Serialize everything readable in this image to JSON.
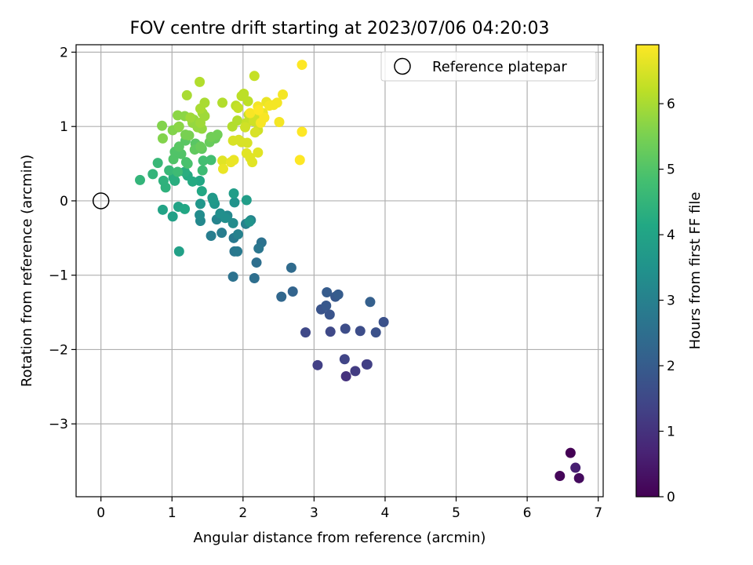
{
  "chart_data": {
    "type": "scatter",
    "title": "FOV centre drift starting at 2023/07/06 04:20:03",
    "xlabel": "Angular distance from reference (arcmin)",
    "ylabel": "Rotation from reference (arcmin)",
    "xlim": [
      -0.35,
      7.07
    ],
    "ylim": [
      -3.98,
      2.1
    ],
    "xticks": [
      "0",
      "1",
      "2",
      "3",
      "4",
      "5",
      "6",
      "7"
    ],
    "yticks": [
      "−3",
      "−2",
      "−1",
      "0",
      "1",
      "2"
    ],
    "xtick_values": [
      0,
      1,
      2,
      3,
      4,
      5,
      6,
      7
    ],
    "ytick_values": [
      -3,
      -2,
      -1,
      0,
      1,
      2
    ],
    "grid": true,
    "colormap": "viridis",
    "reference": {
      "label": "Reference platepar",
      "x": 0,
      "y": 0
    },
    "legend_position": "top-right",
    "colorbar": {
      "label": "Hours from first FF file",
      "range": [
        0,
        6.9
      ],
      "ticks": [
        "0",
        "1",
        "2",
        "3",
        "4",
        "5",
        "6"
      ],
      "tick_values": [
        0,
        1,
        2,
        3,
        4,
        5,
        6
      ]
    },
    "points": [
      [
        6.61,
        -3.39,
        0.0
      ],
      [
        6.46,
        -3.7,
        0.1
      ],
      [
        6.73,
        -3.73,
        0.2
      ],
      [
        6.68,
        -3.59,
        0.6
      ],
      [
        3.45,
        -2.36,
        1.0
      ],
      [
        3.74,
        -2.2,
        1.1
      ],
      [
        3.58,
        -2.29,
        1.2
      ],
      [
        3.75,
        -2.2,
        1.3
      ],
      [
        3.05,
        -2.21,
        1.3
      ],
      [
        3.43,
        -2.13,
        1.4
      ],
      [
        2.88,
        -1.77,
        1.5
      ],
      [
        3.23,
        -1.76,
        1.5
      ],
      [
        3.44,
        -1.72,
        1.6
      ],
      [
        3.65,
        -1.75,
        1.6
      ],
      [
        3.87,
        -1.77,
        1.7
      ],
      [
        3.98,
        -1.63,
        1.7
      ],
      [
        3.1,
        -1.46,
        1.8
      ],
      [
        3.22,
        -1.53,
        1.8
      ],
      [
        3.17,
        -1.41,
        1.9
      ],
      [
        3.3,
        -1.29,
        1.9
      ],
      [
        3.34,
        -1.26,
        2.0
      ],
      [
        3.18,
        -1.23,
        2.0
      ],
      [
        3.79,
        -1.36,
        2.1
      ],
      [
        2.7,
        -1.22,
        2.2
      ],
      [
        2.54,
        -1.29,
        2.3
      ],
      [
        2.68,
        -0.9,
        2.4
      ],
      [
        2.16,
        -1.04,
        2.5
      ],
      [
        2.19,
        -0.83,
        2.5
      ],
      [
        1.86,
        -1.02,
        2.6
      ],
      [
        2.26,
        -0.56,
        2.6
      ],
      [
        2.22,
        -0.64,
        2.7
      ],
      [
        1.88,
        -0.68,
        2.7
      ],
      [
        1.92,
        -0.68,
        2.8
      ],
      [
        1.87,
        -0.5,
        2.8
      ],
      [
        1.55,
        -0.47,
        2.9
      ],
      [
        1.7,
        -0.43,
        2.9
      ],
      [
        1.93,
        -0.45,
        3.0
      ],
      [
        2.04,
        -0.31,
        3.0
      ],
      [
        2.11,
        -0.26,
        3.1
      ],
      [
        1.63,
        -0.25,
        3.1
      ],
      [
        1.78,
        -0.2,
        3.2
      ],
      [
        1.4,
        -0.27,
        3.2
      ],
      [
        1.39,
        -0.19,
        3.3
      ],
      [
        1.86,
        -0.3,
        3.3
      ],
      [
        1.75,
        -0.23,
        3.4
      ],
      [
        1.68,
        -0.17,
        3.4
      ],
      [
        2.09,
        -0.28,
        3.5
      ],
      [
        1.88,
        -0.02,
        3.5
      ],
      [
        1.6,
        -0.04,
        3.6
      ],
      [
        1.4,
        -0.04,
        3.6
      ],
      [
        1.58,
        0.01,
        3.7
      ],
      [
        1.57,
        0.04,
        3.7
      ],
      [
        1.87,
        0.1,
        3.8
      ],
      [
        2.05,
        0.01,
        3.8
      ],
      [
        1.1,
        -0.68,
        3.9
      ],
      [
        1.01,
        -0.21,
        3.9
      ],
      [
        0.87,
        -0.12,
        4.0
      ],
      [
        1.09,
        -0.08,
        4.0
      ],
      [
        1.18,
        -0.11,
        4.1
      ],
      [
        1.42,
        0.13,
        4.1
      ],
      [
        1.39,
        0.27,
        4.1
      ],
      [
        1.29,
        0.26,
        4.2
      ],
      [
        1.22,
        0.34,
        4.2
      ],
      [
        1.18,
        0.39,
        4.3
      ],
      [
        1.02,
        0.31,
        4.3
      ],
      [
        1.04,
        0.27,
        4.3
      ],
      [
        0.91,
        0.18,
        4.4
      ],
      [
        0.88,
        0.27,
        4.4
      ],
      [
        0.55,
        0.28,
        4.5
      ],
      [
        0.73,
        0.36,
        4.5
      ],
      [
        0.8,
        0.51,
        4.6
      ],
      [
        0.96,
        0.41,
        4.6
      ],
      [
        1.08,
        0.39,
        4.7
      ],
      [
        1.43,
        0.41,
        4.7
      ],
      [
        1.55,
        0.55,
        4.8
      ],
      [
        1.44,
        0.54,
        4.8
      ],
      [
        1.2,
        0.52,
        4.9
      ],
      [
        1.22,
        0.5,
        4.9
      ],
      [
        1.02,
        0.56,
        5.0
      ],
      [
        1.04,
        0.66,
        5.0
      ],
      [
        1.13,
        0.63,
        5.0
      ],
      [
        1.1,
        0.73,
        5.1
      ],
      [
        1.19,
        0.81,
        5.1
      ],
      [
        1.33,
        0.77,
        5.1
      ],
      [
        1.42,
        0.7,
        5.2
      ],
      [
        1.32,
        0.69,
        5.2
      ],
      [
        1.4,
        0.73,
        5.3
      ],
      [
        1.53,
        0.79,
        5.3
      ],
      [
        1.61,
        0.84,
        5.3
      ],
      [
        1.55,
        0.86,
        5.4
      ],
      [
        1.64,
        0.89,
        5.4
      ],
      [
        1.24,
        0.88,
        5.5
      ],
      [
        1.19,
        0.89,
        5.5
      ],
      [
        1.09,
        0.99,
        5.5
      ],
      [
        0.87,
        0.84,
        5.6
      ],
      [
        0.86,
        1.01,
        5.6
      ],
      [
        1.01,
        0.95,
        5.6
      ],
      [
        1.1,
        1.0,
        5.7
      ],
      [
        1.08,
        1.15,
        5.7
      ],
      [
        1.18,
        1.14,
        5.7
      ],
      [
        1.31,
        1.09,
        5.8
      ],
      [
        1.29,
        1.05,
        5.8
      ],
      [
        1.36,
        0.99,
        5.8
      ],
      [
        1.42,
        0.97,
        5.8
      ],
      [
        1.4,
        1.05,
        5.9
      ],
      [
        1.43,
        1.18,
        5.9
      ],
      [
        1.46,
        1.14,
        5.9
      ],
      [
        1.26,
        1.12,
        5.9
      ],
      [
        1.4,
        1.24,
        6.0
      ],
      [
        1.46,
        1.32,
        6.0
      ],
      [
        1.21,
        1.42,
        6.0
      ],
      [
        1.39,
        1.6,
        6.1
      ],
      [
        1.71,
        1.32,
        6.1
      ],
      [
        1.85,
        1.0,
        6.1
      ],
      [
        1.92,
        1.08,
        6.1
      ],
      [
        1.9,
        1.28,
        6.2
      ],
      [
        1.98,
        1.41,
        6.2
      ],
      [
        2.01,
        1.44,
        6.2
      ],
      [
        2.07,
        1.34,
        6.2
      ],
      [
        2.16,
        1.68,
        6.3
      ],
      [
        1.93,
        1.25,
        6.3
      ],
      [
        2.08,
        1.16,
        6.3
      ],
      [
        2.05,
        1.05,
        6.3
      ],
      [
        2.03,
        0.99,
        6.4
      ],
      [
        2.15,
        1.07,
        6.4
      ],
      [
        2.2,
        1.12,
        6.4
      ],
      [
        2.21,
        0.95,
        6.4
      ],
      [
        2.17,
        0.92,
        6.5
      ],
      [
        1.94,
        0.82,
        6.5
      ],
      [
        1.86,
        0.81,
        6.5
      ],
      [
        1.98,
        0.79,
        6.5
      ],
      [
        2.06,
        0.78,
        6.5
      ],
      [
        2.05,
        0.64,
        6.6
      ],
      [
        2.1,
        0.58,
        6.6
      ],
      [
        2.13,
        0.52,
        6.6
      ],
      [
        2.21,
        0.65,
        6.6
      ],
      [
        1.71,
        0.54,
        6.6
      ],
      [
        1.72,
        0.43,
        6.7
      ],
      [
        1.87,
        0.55,
        6.7
      ],
      [
        1.83,
        0.52,
        6.7
      ],
      [
        2.28,
        1.18,
        6.7
      ],
      [
        2.33,
        1.33,
        6.7
      ],
      [
        2.37,
        1.28,
        6.8
      ],
      [
        2.43,
        1.29,
        6.8
      ],
      [
        2.48,
        1.32,
        6.8
      ],
      [
        2.51,
        1.06,
        6.8
      ],
      [
        2.56,
        1.43,
        6.8
      ],
      [
        2.21,
        1.27,
        6.8
      ],
      [
        2.3,
        1.12,
        6.85
      ],
      [
        2.25,
        1.05,
        6.85
      ],
      [
        2.1,
        1.18,
        6.85
      ],
      [
        2.22,
        1.22,
        6.9
      ],
      [
        2.83,
        1.83,
        6.9
      ],
      [
        2.8,
        0.55,
        6.9
      ],
      [
        2.83,
        0.93,
        6.9
      ]
    ]
  }
}
